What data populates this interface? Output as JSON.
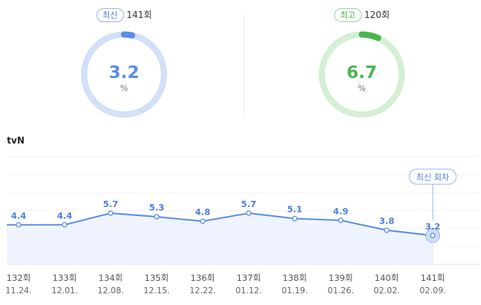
{
  "latest": {
    "badge": "최신",
    "episode": "141회",
    "value": "3.2",
    "unit": "%",
    "fraction": 0.032,
    "color": "#5b8de8",
    "track": "#d2e0f8"
  },
  "best": {
    "badge": "최고",
    "episode": "120회",
    "value": "6.7",
    "unit": "%",
    "fraction": 0.067,
    "color": "#4cb552",
    "track": "#d4efd4"
  },
  "channel": "tvN",
  "chart_data": {
    "type": "line",
    "x": [
      "132회",
      "133회",
      "134회",
      "135회",
      "136회",
      "137회",
      "138회",
      "139회",
      "140회",
      "141회"
    ],
    "dates": [
      "11.24.",
      "12.01.",
      "12.08.",
      "12.15.",
      "12.22.",
      "01.12.",
      "01.19.",
      "01.26.",
      "02.02.",
      "02.09."
    ],
    "values": [
      4.4,
      4.4,
      5.7,
      5.3,
      4.8,
      5.7,
      5.1,
      4.9,
      3.8,
      3.2
    ],
    "callout": "최신 회차",
    "ylim": [
      0,
      12
    ],
    "grid": true,
    "line_color": "#5b8de8",
    "fill_color": "#eef3fd"
  }
}
